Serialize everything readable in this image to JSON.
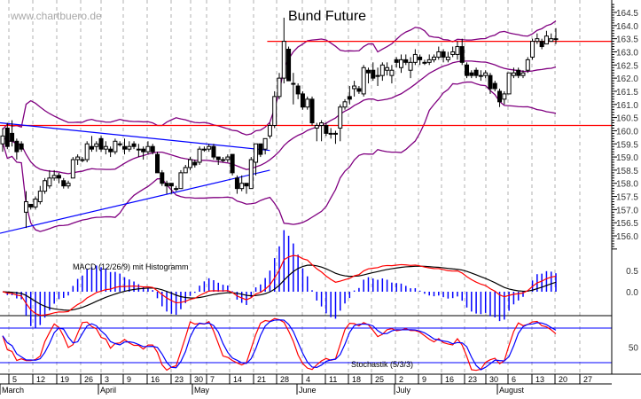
{
  "watermark": "www.chartbuero.de",
  "chart_data": {
    "type": "candlestick",
    "title": "Bund Future",
    "price_axis": {
      "ylim": [
        155.5,
        164.8
      ],
      "tick_labels": [
        "164.5",
        "164.0",
        "163.5",
        "163.0",
        "162.5",
        "162.0",
        "161.5",
        "161.0",
        "160.5",
        "160.0",
        "159.5",
        "159.0",
        "158.5",
        "158.0",
        "157.5",
        "157.0",
        "156.5",
        "156.0"
      ]
    },
    "grid": "vertical dashed weekly",
    "candles_ohlc": [
      [
        159.5,
        160.1,
        159.2,
        159.8
      ],
      [
        160.1,
        160.3,
        159.3,
        159.4
      ],
      [
        159.9,
        160.4,
        159.4,
        159.6
      ],
      [
        159.6,
        159.7,
        158.9,
        159.2
      ],
      [
        159.5,
        159.6,
        159.2,
        159.3
      ],
      [
        156.9,
        157.7,
        156.3,
        157.3
      ],
      [
        157.2,
        157.2,
        157.0,
        157.1
      ],
      [
        157.1,
        157.5,
        157.0,
        157.4
      ],
      [
        157.3,
        157.9,
        157.2,
        157.7
      ],
      [
        157.7,
        158.2,
        157.6,
        158.1
      ],
      [
        157.9,
        158.5,
        157.8,
        158.2
      ],
      [
        158.2,
        158.5,
        158.1,
        158.3
      ],
      [
        158.3,
        158.4,
        158.0,
        158.2
      ],
      [
        158.1,
        158.2,
        157.8,
        157.9
      ],
      [
        157.9,
        158.1,
        157.8,
        158.0
      ],
      [
        158.2,
        159.0,
        158.2,
        158.9
      ],
      [
        158.9,
        159.1,
        158.7,
        159.0
      ],
      [
        158.9,
        159.0,
        158.8,
        158.9
      ],
      [
        158.9,
        159.6,
        158.8,
        159.5
      ],
      [
        159.4,
        159.8,
        159.2,
        159.3
      ],
      [
        159.4,
        159.6,
        159.2,
        159.5
      ],
      [
        159.7,
        159.8,
        159.2,
        159.3
      ],
      [
        159.3,
        159.6,
        159.1,
        159.4
      ],
      [
        159.3,
        159.4,
        159.0,
        159.2
      ],
      [
        159.2,
        159.7,
        159.1,
        159.6
      ],
      [
        159.5,
        159.6,
        159.4,
        159.5
      ],
      [
        159.4,
        159.7,
        159.1,
        159.3
      ],
      [
        159.3,
        159.6,
        159.2,
        159.4
      ],
      [
        159.5,
        159.6,
        159.3,
        159.4
      ],
      [
        159.3,
        159.5,
        159.0,
        159.3
      ],
      [
        159.3,
        159.4,
        158.9,
        159.2
      ],
      [
        159.2,
        159.6,
        159.1,
        159.4
      ],
      [
        159.4,
        159.5,
        159.1,
        159.2
      ],
      [
        159.1,
        159.2,
        158.4,
        158.4
      ],
      [
        158.4,
        158.5,
        157.9,
        158.0
      ],
      [
        158.0,
        158.1,
        157.6,
        157.9
      ],
      [
        158.0,
        158.0,
        157.6,
        157.9
      ],
      [
        157.8,
        157.9,
        157.7,
        157.8
      ],
      [
        157.8,
        158.5,
        157.8,
        158.4
      ],
      [
        158.4,
        158.7,
        158.4,
        158.6
      ],
      [
        158.6,
        159.0,
        158.5,
        158.9
      ],
      [
        158.8,
        158.9,
        158.6,
        158.7
      ],
      [
        158.8,
        159.4,
        158.7,
        159.3
      ],
      [
        159.3,
        159.4,
        159.2,
        159.3
      ],
      [
        159.3,
        159.5,
        159.2,
        159.4
      ],
      [
        159.4,
        159.5,
        158.9,
        159.0
      ],
      [
        159.0,
        159.0,
        158.7,
        158.9
      ],
      [
        158.9,
        159.0,
        158.8,
        158.9
      ],
      [
        158.9,
        159.1,
        158.8,
        159.0
      ],
      [
        159.1,
        159.1,
        158.3,
        158.4
      ],
      [
        158.2,
        158.3,
        157.6,
        157.8
      ],
      [
        157.8,
        158.3,
        157.7,
        158.0
      ],
      [
        158.0,
        158.0,
        157.6,
        157.9
      ],
      [
        157.8,
        159.0,
        157.8,
        158.9
      ],
      [
        158.8,
        159.5,
        158.3,
        159.5
      ],
      [
        159.5,
        159.5,
        159.0,
        159.1
      ],
      [
        159.3,
        159.7,
        159.1,
        159.7
      ],
      [
        159.8,
        160.3,
        159.7,
        160.2
      ],
      [
        160.2,
        161.5,
        160.1,
        161.3
      ],
      [
        161.3,
        162.2,
        161.2,
        162.0
      ],
      [
        162.0,
        164.3,
        161.8,
        163.4
      ],
      [
        163.1,
        163.2,
        161.9,
        161.9
      ],
      [
        161.8,
        162.2,
        161.0,
        161.8
      ],
      [
        161.7,
        161.8,
        161.2,
        161.4
      ],
      [
        161.4,
        161.5,
        160.8,
        160.9
      ],
      [
        160.9,
        161.3,
        160.8,
        161.2
      ],
      [
        161.2,
        161.3,
        160.2,
        160.3
      ],
      [
        160.1,
        160.3,
        159.6,
        160.2
      ],
      [
        160.2,
        160.4,
        159.6,
        160.3
      ],
      [
        160.2,
        160.3,
        159.8,
        159.9
      ],
      [
        159.9,
        160.1,
        159.7,
        159.9
      ],
      [
        159.9,
        160.0,
        159.5,
        159.9
      ],
      [
        160.1,
        161.0,
        159.6,
        160.9
      ],
      [
        160.9,
        161.2,
        160.8,
        161.1
      ],
      [
        161.3,
        161.7,
        161.0,
        161.2
      ],
      [
        161.6,
        161.9,
        161.3,
        161.7
      ],
      [
        161.6,
        161.7,
        161.4,
        161.5
      ],
      [
        161.4,
        162.5,
        161.3,
        162.4
      ],
      [
        162.3,
        162.4,
        161.8,
        162.2
      ],
      [
        162.3,
        162.6,
        161.9,
        162.0
      ],
      [
        162.1,
        162.4,
        161.7,
        162.1
      ],
      [
        162.1,
        162.6,
        161.9,
        162.5
      ],
      [
        162.3,
        162.6,
        162.1,
        162.4
      ],
      [
        162.1,
        162.5,
        161.8,
        162.3
      ],
      [
        162.7,
        162.8,
        162.4,
        162.6
      ],
      [
        162.4,
        162.9,
        162.2,
        162.7
      ],
      [
        162.7,
        162.9,
        162.5,
        162.6
      ],
      [
        162.3,
        162.8,
        162.0,
        162.6
      ],
      [
        162.6,
        163.1,
        162.5,
        162.9
      ],
      [
        162.8,
        162.9,
        162.5,
        162.7
      ],
      [
        162.6,
        162.7,
        162.5,
        162.6
      ],
      [
        162.6,
        162.9,
        162.5,
        162.7
      ],
      [
        162.7,
        162.9,
        162.6,
        162.8
      ],
      [
        162.8,
        163.2,
        162.7,
        163.0
      ],
      [
        163.0,
        163.1,
        162.6,
        162.8
      ],
      [
        162.7,
        163.0,
        162.6,
        162.8
      ],
      [
        162.9,
        163.2,
        162.8,
        163.0
      ],
      [
        162.9,
        163.4,
        162.7,
        163.2
      ],
      [
        163.2,
        163.5,
        162.5,
        162.6
      ],
      [
        162.5,
        162.6,
        162.0,
        162.1
      ],
      [
        162.2,
        162.3,
        162.0,
        162.1
      ],
      [
        162.3,
        162.4,
        162.0,
        162.1
      ],
      [
        162.1,
        162.3,
        161.9,
        162.1
      ],
      [
        162.1,
        162.3,
        162.0,
        162.2
      ],
      [
        162.1,
        162.2,
        161.4,
        161.6
      ],
      [
        161.8,
        161.9,
        161.5,
        161.6
      ],
      [
        161.5,
        161.6,
        160.9,
        161.1
      ],
      [
        161.2,
        161.5,
        161.0,
        161.4
      ],
      [
        161.4,
        162.2,
        161.4,
        162.2
      ],
      [
        162.1,
        162.4,
        162.0,
        162.2
      ],
      [
        162.3,
        162.4,
        162.0,
        162.1
      ],
      [
        162.1,
        162.3,
        162.0,
        162.2
      ],
      [
        162.3,
        162.8,
        162.2,
        162.7
      ],
      [
        162.8,
        163.5,
        162.7,
        163.4
      ],
      [
        163.4,
        163.7,
        163.3,
        163.5
      ],
      [
        163.4,
        163.5,
        163.1,
        163.2
      ],
      [
        163.3,
        163.8,
        163.3,
        163.6
      ],
      [
        163.4,
        163.7,
        163.4,
        163.5
      ],
      [
        163.5,
        163.9,
        163.3,
        163.5
      ]
    ],
    "indicators": {
      "bollinger": {
        "period": 20,
        "stddev": 2,
        "color": "#800080"
      },
      "macd": {
        "label": "MACD (12/26/9) mit Histogramm",
        "fast": 12,
        "slow": 26,
        "signal": 9,
        "tick_labels": [
          "0.5",
          "0.0"
        ],
        "macd_color": "#ff0000",
        "signal_color": "#000000",
        "histogram_color": "#0000ff"
      },
      "stochastic": {
        "label": "Stochastik (5/3/3)",
        "k": 5,
        "smooth": 3,
        "d": 3,
        "tick_labels": [
          "50"
        ],
        "levels": [
          80,
          20
        ],
        "k_color": "#ff0000",
        "d_color": "#0000ff"
      }
    },
    "horizontal_lines": [
      {
        "price": 163.4,
        "from_candle": 57,
        "color": "#ff0000"
      },
      {
        "price": 160.2,
        "from_candle": 0,
        "color": "#ff0000"
      }
    ],
    "trendlines": [
      {
        "from": [
          0,
          160.3
        ],
        "to": [
          57,
          159.25
        ],
        "color": "#0000ff"
      },
      {
        "from": [
          0,
          156.1
        ],
        "to": [
          57,
          158.5
        ],
        "color": "#0000ff"
      }
    ],
    "x_axis": {
      "day_labels": [
        "5",
        "12",
        "19",
        "26",
        "3",
        "9",
        "16",
        "23",
        "30",
        "7",
        "14",
        "21",
        "28",
        "4",
        "11",
        "18",
        "25",
        "2",
        "9",
        "16",
        "23",
        "30",
        "6",
        "13",
        "20",
        "27"
      ],
      "month_labels": [
        "March",
        "April",
        "May",
        "June",
        "July",
        "August"
      ]
    }
  }
}
